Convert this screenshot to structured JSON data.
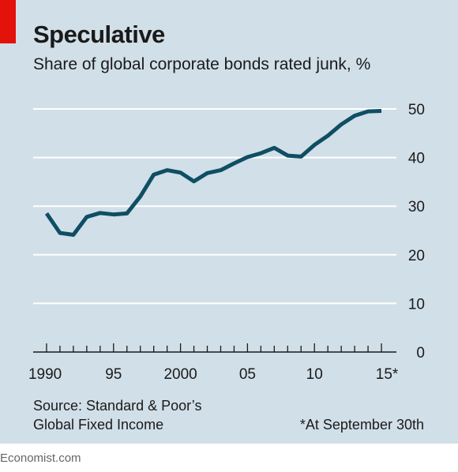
{
  "header": {
    "title": "Speculative",
    "subtitle": "Share of global corporate bonds rated junk, %"
  },
  "footer": {
    "source_line1": "Source: Standard & Poor’s",
    "source_line2": "Global Fixed Income",
    "footnote": "*At September 30th",
    "brand": "Economist.com"
  },
  "colors": {
    "background": "#d1dfe8",
    "line": "#0f4e63",
    "grid": "#ffffff",
    "accent": "#e3120b"
  },
  "chart_data": {
    "type": "line",
    "title": "Speculative",
    "subtitle": "Share of global corporate bonds rated junk, %",
    "xlim": [
      1989,
      2016
    ],
    "ylim": [
      0,
      50
    ],
    "y_ticks": [
      0,
      10,
      20,
      30,
      40,
      50
    ],
    "x_tick_labels": [
      {
        "x": 1990,
        "label": "1990"
      },
      {
        "x": 1995,
        "label": "95"
      },
      {
        "x": 2000,
        "label": "2000"
      },
      {
        "x": 2005,
        "label": "05"
      },
      {
        "x": 2010,
        "label": "10"
      },
      {
        "x": 2015,
        "label": "15*"
      }
    ],
    "grid": true,
    "series": [
      {
        "x": [
          1990,
          1991,
          1992,
          1993,
          1994,
          1995,
          1996,
          1997,
          1998,
          1999,
          2000,
          2001,
          2002,
          2003,
          2004,
          2005,
          2006,
          2007,
          2008,
          2009,
          2010,
          2011,
          2012,
          2013,
          2014,
          2015
        ],
        "values": [
          28.5,
          24.5,
          24.1,
          27.8,
          28.6,
          28.3,
          28.5,
          32.0,
          36.5,
          37.4,
          36.9,
          35.1,
          36.8,
          37.4,
          38.8,
          40.1,
          40.9,
          42.0,
          40.4,
          40.2,
          42.6,
          44.5,
          46.8,
          48.6,
          49.5,
          49.6
        ]
      }
    ]
  }
}
